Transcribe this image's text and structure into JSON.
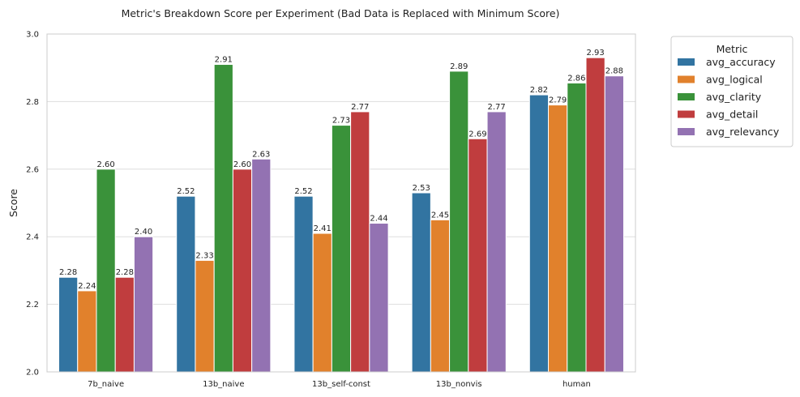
{
  "chart_data": {
    "type": "bar",
    "title": "Metric's Breakdown Score per Experiment (Bad Data is Replaced with Minimum Score)",
    "xlabel": "",
    "ylabel": "Score",
    "ylim": [
      2.0,
      3.0
    ],
    "yticks": [
      "2.0",
      "2.2",
      "2.4",
      "2.6",
      "2.8",
      "3.0"
    ],
    "grid": true,
    "legend": {
      "title": "Metric",
      "placement": "outside-top-right"
    },
    "categories": [
      "7b_naive",
      "13b_naive",
      "13b_self-const",
      "13b_nonvis",
      "human"
    ],
    "series": [
      {
        "name": "avg_accuracy",
        "color": "#3274a1",
        "values": [
          2.28,
          2.52,
          2.52,
          2.53,
          2.82
        ],
        "labels": [
          "2.28",
          "2.52",
          "2.52",
          "2.53",
          "2.82"
        ]
      },
      {
        "name": "avg_logical",
        "color": "#e1812c",
        "values": [
          2.24,
          2.33,
          2.41,
          2.45,
          2.79
        ],
        "labels": [
          "2.24",
          "2.33",
          "2.41",
          "2.45",
          "2.79"
        ]
      },
      {
        "name": "avg_clarity",
        "color": "#3a923a",
        "values": [
          2.6,
          2.91,
          2.73,
          2.89,
          2.855
        ],
        "labels": [
          "2.60",
          "2.91",
          "2.73",
          "2.89",
          "2.86"
        ]
      },
      {
        "name": "avg_detail",
        "color": "#c03d3e",
        "values": [
          2.28,
          2.6,
          2.77,
          2.69,
          2.93
        ],
        "labels": [
          "2.28",
          "2.60",
          "2.77",
          "2.69",
          "2.93"
        ]
      },
      {
        "name": "avg_relevancy",
        "color": "#9372b2",
        "values": [
          2.4,
          2.63,
          2.44,
          2.77,
          2.876
        ],
        "labels": [
          "2.40",
          "2.63",
          "2.44",
          "2.77",
          "2.88"
        ]
      }
    ]
  }
}
